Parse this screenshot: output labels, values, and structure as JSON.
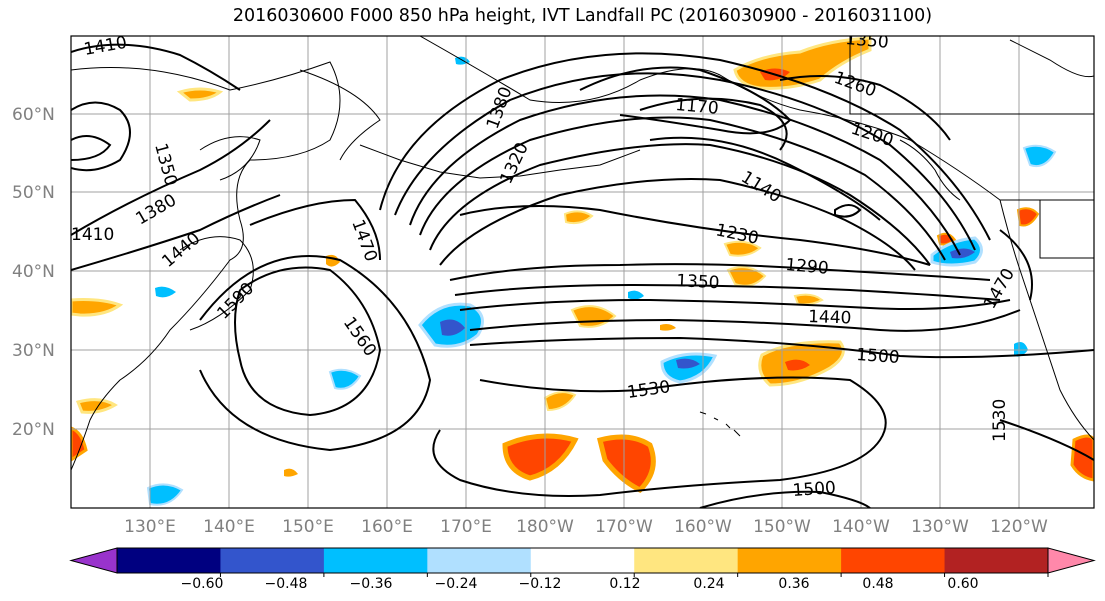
{
  "title": "2016030600 F000 850 hPa height, IVT Landfall PC (2016030900 - 2016031100)",
  "lat_labels": [
    "60°N",
    "50°N",
    "40°N",
    "30°N",
    "20°N"
  ],
  "lon_labels": [
    "130°E",
    "140°E",
    "150°E",
    "160°E",
    "170°E",
    "180°W",
    "170°W",
    "160°W",
    "150°W",
    "140°W",
    "130°W",
    "120°W"
  ],
  "contour_labels": [
    "1410",
    "1350",
    "1380",
    "1410",
    "1440",
    "1470",
    "1590",
    "1560",
    "1380",
    "1320",
    "1170",
    "1260",
    "1200",
    "1140",
    "1230",
    "1290",
    "1350",
    "1440",
    "1500",
    "1530",
    "1470",
    "1530",
    "1500",
    "1350"
  ],
  "colorbar": {
    "tick_labels": [
      "−0.60",
      "−0.48",
      "−0.36",
      "−0.24",
      "−0.12",
      "0.12",
      "0.24",
      "0.36",
      "0.48",
      "0.60"
    ],
    "colors": [
      "#9933cc",
      "#000080",
      "#3355cc",
      "#00bfff",
      "#b0e0ff",
      "#ffffff",
      "#ffe680",
      "#ffa500",
      "#ff4500",
      "#b22222",
      "#ff88aa"
    ]
  },
  "colors": {
    "positive_light": "#ffe680",
    "positive_mid": "#ffa500",
    "positive_high": "#ff4500",
    "negative_light": "#b0e0ff",
    "negative_mid": "#00bfff",
    "negative_high": "#3355cc",
    "grid": "#a0a0a0"
  }
}
